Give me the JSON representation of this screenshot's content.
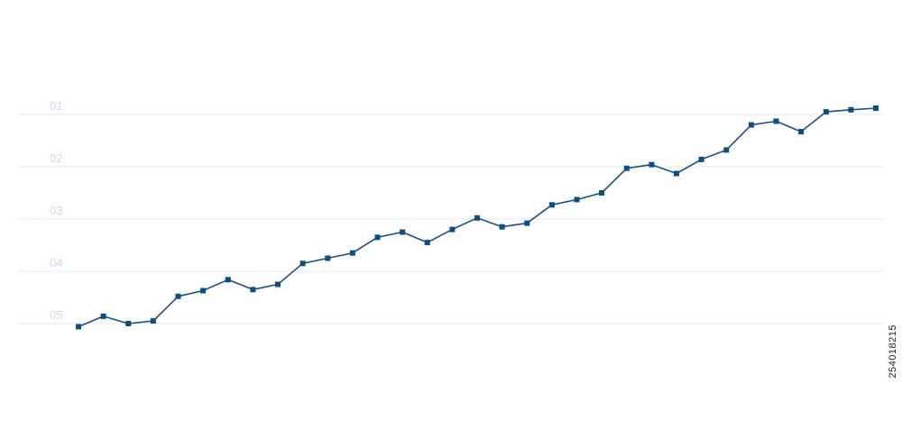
{
  "chart_data": {
    "type": "line",
    "title": "",
    "xlabel": "",
    "ylabel": "",
    "y_tick_labels": [
      "01",
      "02",
      "03",
      "04",
      "05"
    ],
    "ylim": [
      0.5,
      5.1
    ],
    "grid": true,
    "legend": "none",
    "series": [
      {
        "x": [
          1,
          2,
          3,
          4,
          5,
          6,
          7,
          8,
          9,
          10,
          11,
          12,
          13,
          14,
          15,
          16,
          17,
          18,
          19,
          20,
          21,
          22,
          23,
          24,
          25,
          26,
          27,
          28,
          29,
          30,
          31,
          32,
          33
        ],
        "values": [
          5.06,
          4.86,
          5.0,
          4.95,
          4.48,
          4.37,
          4.16,
          4.35,
          4.25,
          3.85,
          3.75,
          3.65,
          3.35,
          3.25,
          3.45,
          3.2,
          2.98,
          3.15,
          3.08,
          2.73,
          2.63,
          2.5,
          2.03,
          1.96,
          2.13,
          1.86,
          1.68,
          1.2,
          1.13,
          1.33,
          0.95,
          0.91,
          0.88
        ]
      }
    ]
  },
  "colors": {
    "line": "#1b4f80",
    "marker": "#0c4f85",
    "grid": "#dde8f4",
    "tick_label": "#c9daf0"
  },
  "stock_id": "254018215"
}
